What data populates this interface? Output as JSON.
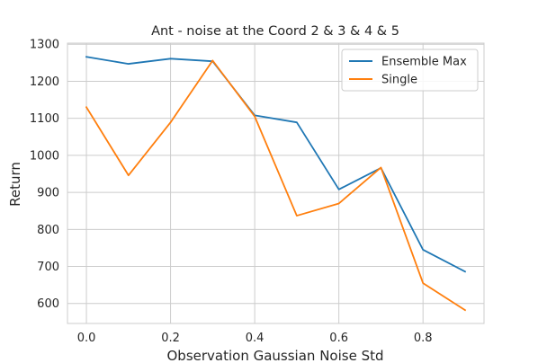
{
  "chart_data": {
    "type": "line",
    "title": "Ant - noise at the Coord 2 & 3 & 4 & 5",
    "xlabel": "Observation Gaussian Noise Std",
    "ylabel": "Return",
    "x": [
      0.0,
      0.1,
      0.2,
      0.3,
      0.4,
      0.5,
      0.6,
      0.7,
      0.8,
      0.9
    ],
    "xticks": [
      "0.0",
      "0.2",
      "0.4",
      "0.6",
      "0.8"
    ],
    "xtick_values": [
      0.0,
      0.2,
      0.4,
      0.6,
      0.8
    ],
    "yticks": [
      "600",
      "700",
      "800",
      "900",
      "1000",
      "1100",
      "1200",
      "1300"
    ],
    "ytick_values": [
      600,
      700,
      800,
      900,
      1000,
      1100,
      1200,
      1300
    ],
    "xlim": [
      -0.045,
      0.945
    ],
    "ylim": [
      546,
      1303
    ],
    "grid": true,
    "legend_position": "top-right",
    "series": [
      {
        "name": "Ensemble Max",
        "color": "#1f77b4",
        "values": [
          1266,
          1247,
          1261,
          1254,
          1108,
          1089,
          908,
          966,
          745,
          686
        ]
      },
      {
        "name": "Single",
        "color": "#ff7f0e",
        "values": [
          1130,
          946,
          1089,
          1256,
          1105,
          837,
          870,
          967,
          655,
          582
        ]
      }
    ]
  }
}
